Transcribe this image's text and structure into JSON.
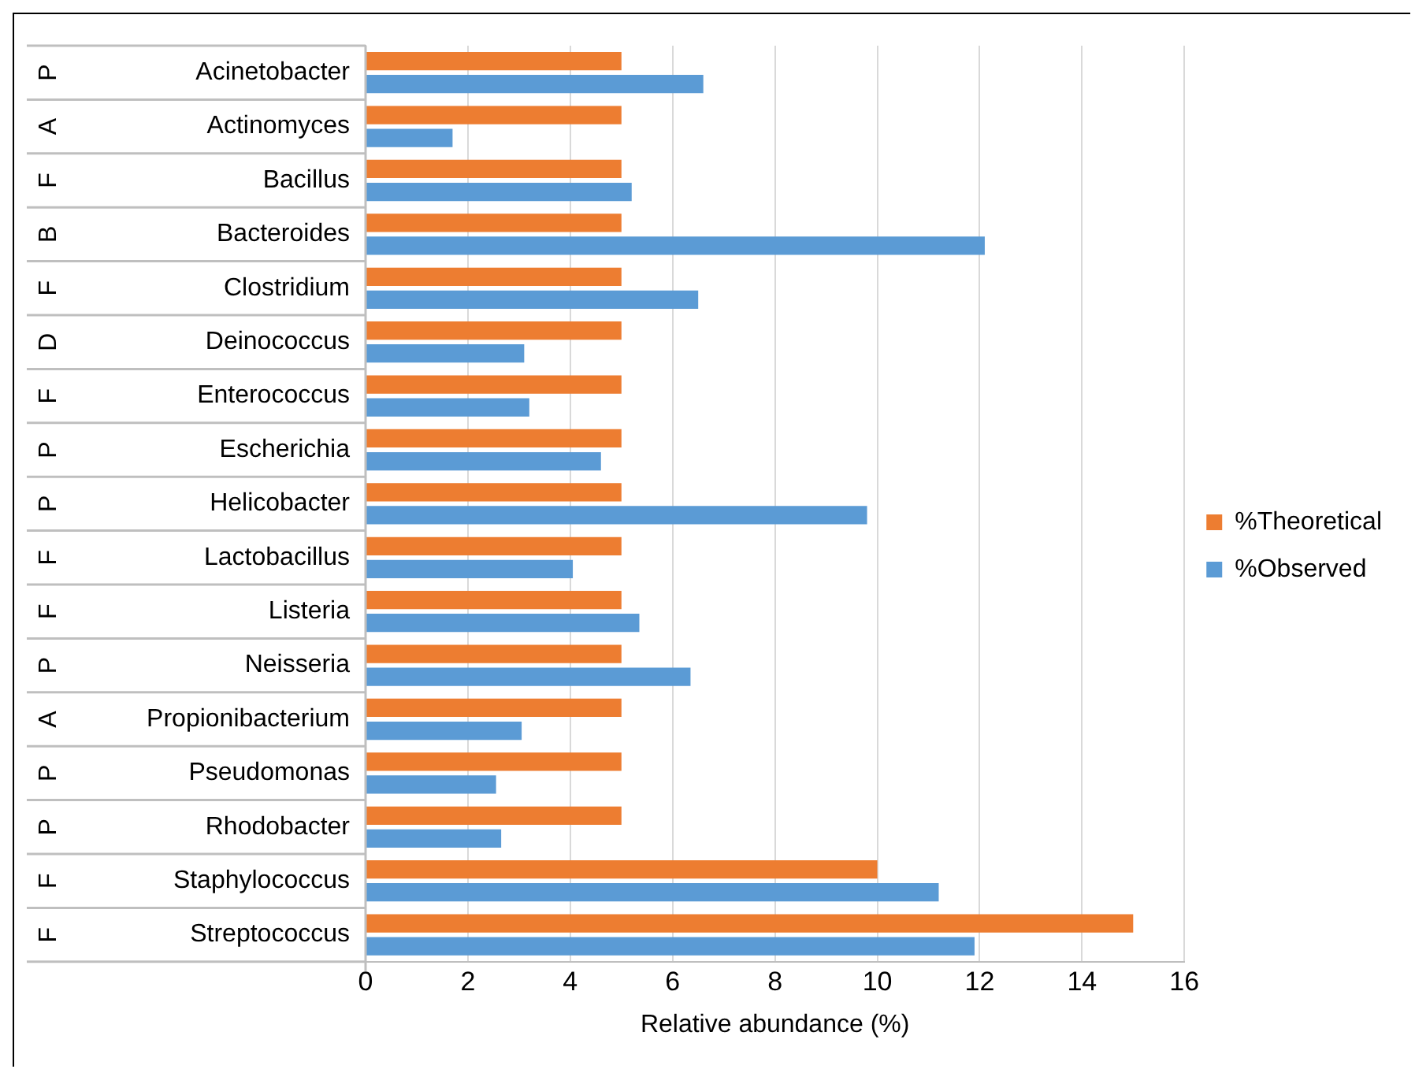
{
  "chart_data": {
    "type": "bar",
    "orientation": "horizontal",
    "xlabel": "Relative abundance (%)",
    "categories": [
      "Acinetobacter",
      "Actinomyces",
      "Bacillus",
      "Bacteroides",
      "Clostridium",
      "Deinococcus",
      "Enterococcus",
      "Escherichia",
      "Helicobacter",
      "Lactobacillus",
      "Listeria",
      "Neisseria",
      "Propionibacterium",
      "Pseudomonas",
      "Rhodobacter",
      "Staphylococcus",
      "Streptococcus"
    ],
    "series": [
      {
        "name": "%Theoretical",
        "color": "#ed7d31",
        "values": [
          5,
          5,
          5,
          5,
          5,
          5,
          5,
          5,
          5,
          5,
          5,
          5,
          5,
          5,
          5,
          10,
          15
        ]
      },
      {
        "name": "%Observed",
        "color": "#5b9bd5",
        "values": [
          6.6,
          1.7,
          5.2,
          12.1,
          6.5,
          3.1,
          3.2,
          4.6,
          9.8,
          4.05,
          5.35,
          6.35,
          3.05,
          2.55,
          2.65,
          11.2,
          11.9
        ]
      }
    ],
    "xlim": [
      0,
      16
    ],
    "xticks": [
      0,
      2,
      4,
      6,
      8,
      10,
      12,
      14,
      16
    ],
    "grid": "x",
    "legend": "right",
    "annotations": [
      "P",
      "A",
      "F",
      "B",
      "F",
      "D",
      "F",
      "P",
      "P",
      "F",
      "F",
      "P",
      "A",
      "P",
      "P",
      "F",
      "F"
    ]
  }
}
